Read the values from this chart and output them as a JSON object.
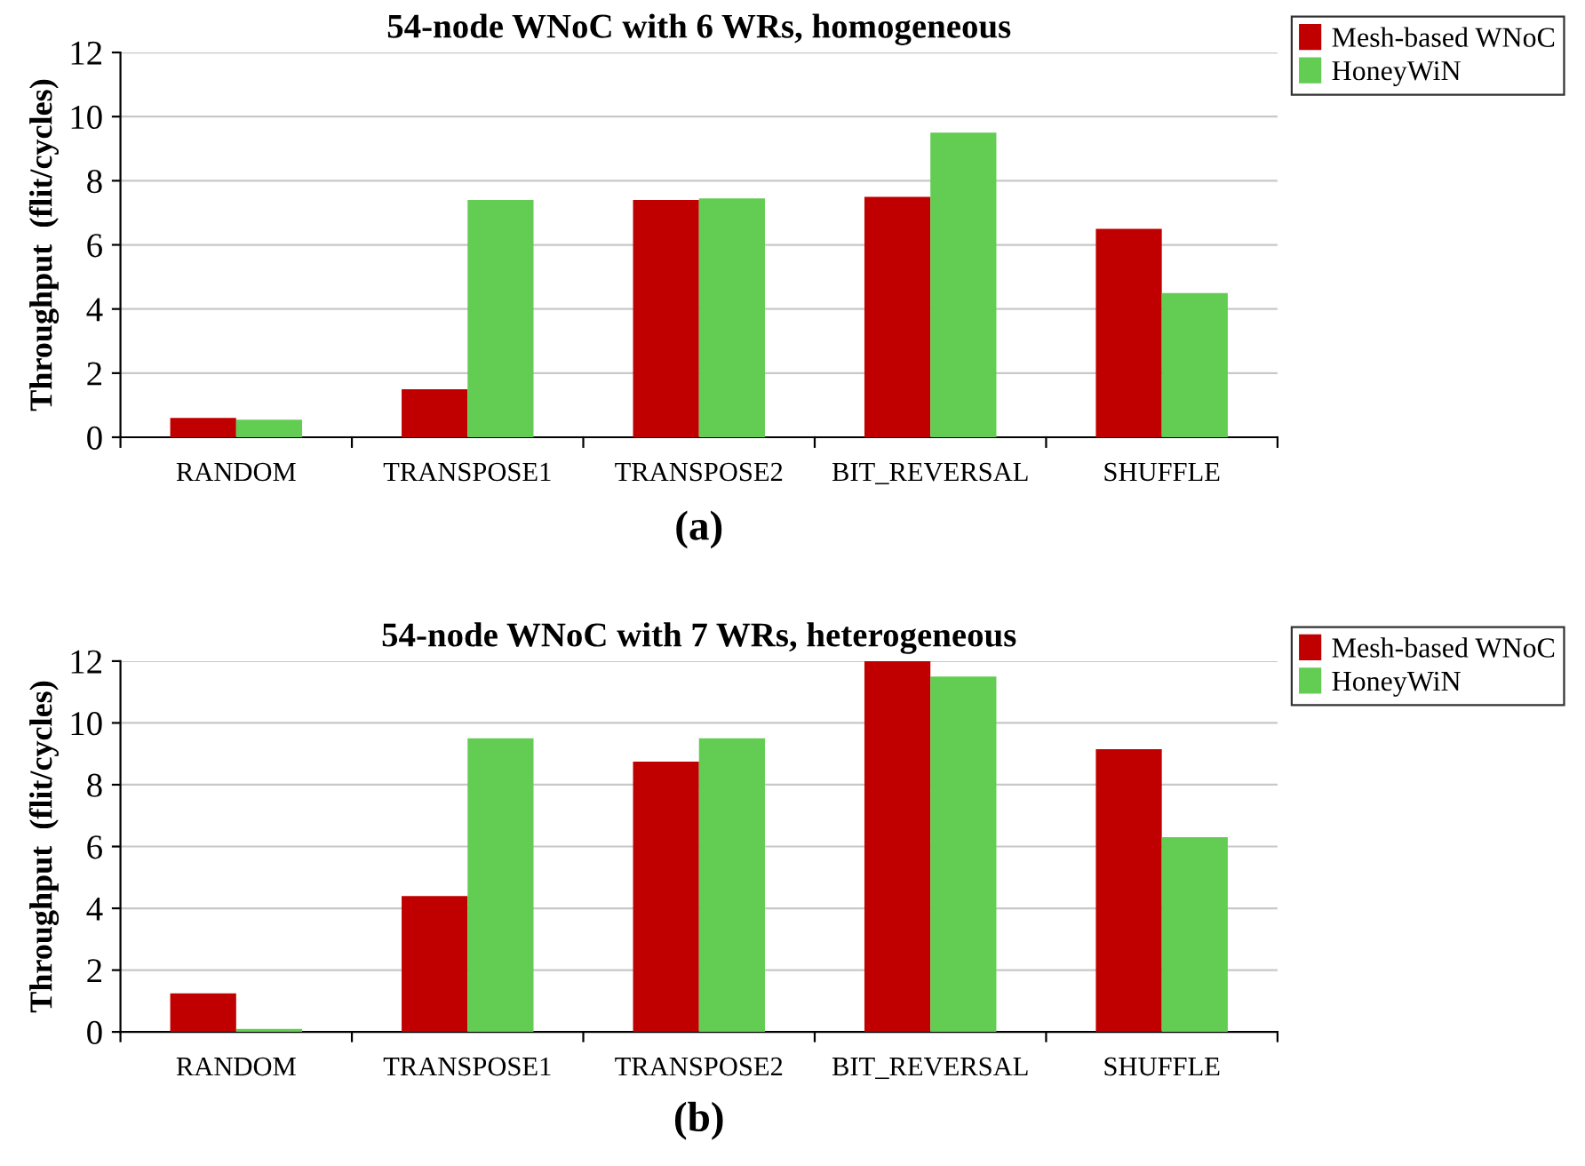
{
  "chart_data": [
    {
      "type": "bar",
      "title": "54-node WNoC with 6 WRs, homogeneous",
      "ylabel": "Throughput  (flit/cycles)",
      "categories": [
        "RANDOM",
        "TRANSPOSE1",
        "TRANSPOSE2",
        "BIT_REVERSAL",
        "SHUFFLE"
      ],
      "series": [
        {
          "name": "Mesh-based WNoC",
          "color": "#c00000",
          "values": [
            0.6,
            1.5,
            7.4,
            7.5,
            6.5
          ]
        },
        {
          "name": "HoneyWiN",
          "color": "#62cd52",
          "values": [
            0.55,
            7.4,
            7.45,
            9.5,
            4.5
          ]
        }
      ],
      "ylim": [
        0,
        12
      ],
      "yticks": [
        0,
        2,
        4,
        6,
        8,
        10,
        12
      ],
      "grid": "y",
      "legend": "top right",
      "annotations": [
        "(a)"
      ]
    },
    {
      "type": "bar",
      "title": "54-node WNoC with 7 WRs, heterogeneous",
      "ylabel": "Throughput  (flit/cycles)",
      "categories": [
        "RANDOM",
        "TRANSPOSE1",
        "TRANSPOSE2",
        "BIT_REVERSAL",
        "SHUFFLE"
      ],
      "series": [
        {
          "name": "Mesh-based WNoC",
          "color": "#c00000",
          "values": [
            1.25,
            4.4,
            8.75,
            12,
            9.15
          ]
        },
        {
          "name": "HoneyWiN",
          "color": "#62cd52",
          "values": [
            0.1,
            9.5,
            9.5,
            11.5,
            6.3
          ]
        }
      ],
      "ylim": [
        0,
        12
      ],
      "yticks": [
        0,
        2,
        4,
        6,
        8,
        10,
        12
      ],
      "grid": "y",
      "legend": "top right",
      "annotations": [
        "(b)"
      ]
    }
  ]
}
